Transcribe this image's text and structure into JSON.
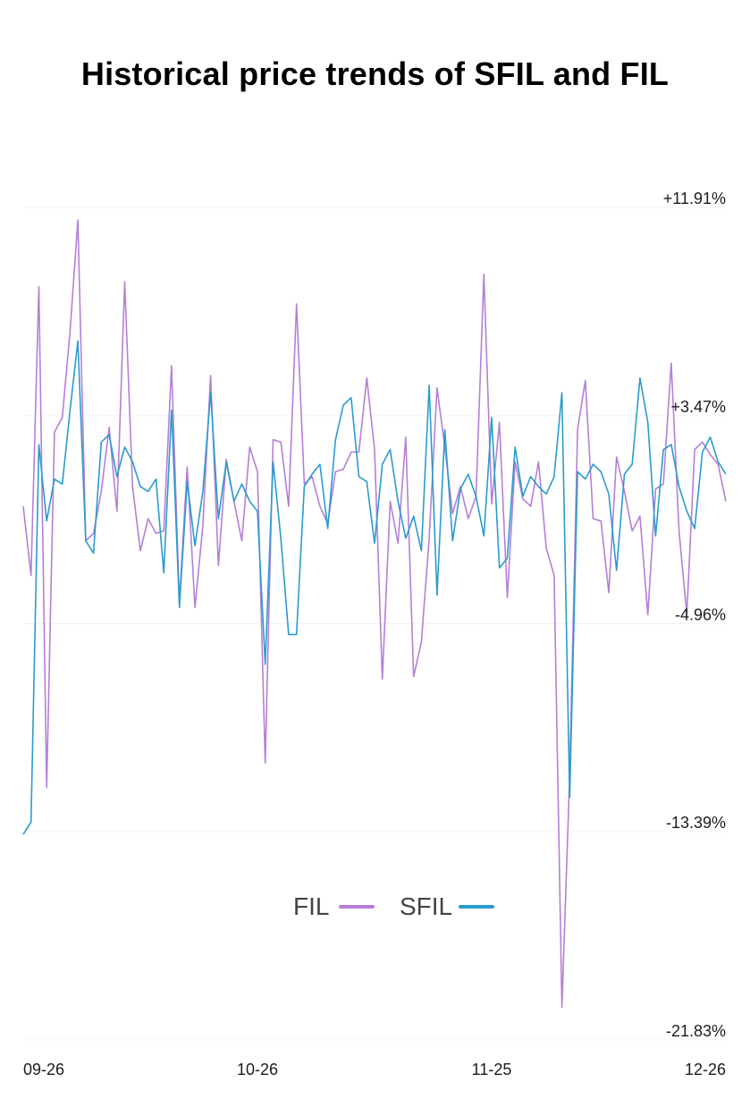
{
  "chart_data": {
    "type": "line",
    "title": "Historical price trends of SFIL and FIL",
    "xlabel": "",
    "ylabel": "",
    "x_ticks": [
      "09-26",
      "10-26",
      "11-25",
      "12-26"
    ],
    "x_tick_index": [
      2,
      30,
      60,
      91
    ],
    "y_ticks": [
      "+11.91%",
      "+3.47%",
      "-4.96%",
      "-13.39%",
      "-21.83%"
    ],
    "y_tick_values": [
      11.91,
      3.47,
      -4.96,
      -13.39,
      -21.83
    ],
    "ylim": [
      -21.83,
      11.91
    ],
    "grid": true,
    "legend": "bottom-center",
    "series": [
      {
        "name": "FIL",
        "color": "#b57fd6",
        "values": [
          -0.2,
          -3.0,
          8.7,
          -11.6,
          2.8,
          3.4,
          6.9,
          11.4,
          -1.6,
          -1.3,
          0.4,
          3.0,
          -0.4,
          8.9,
          0.6,
          -2.0,
          -0.7,
          -1.3,
          -1.2,
          5.5,
          -4.1,
          1.4,
          -4.3,
          -1.0,
          5.1,
          -2.6,
          1.7,
          0.0,
          -1.6,
          2.2,
          1.2,
          -10.6,
          2.5,
          2.4,
          -0.2,
          8.0,
          0.7,
          1.0,
          -0.2,
          -0.9,
          1.2,
          1.3,
          2.0,
          2.0,
          5.0,
          2.1,
          -7.2,
          0.0,
          -1.7,
          2.6,
          -7.1,
          -5.7,
          -1.5,
          4.6,
          2.2,
          -0.5,
          0.6,
          -0.7,
          0.2,
          9.2,
          -0.1,
          3.2,
          -3.9,
          1.6,
          0.1,
          -0.2,
          1.6,
          -1.9,
          -3.0,
          -20.5,
          -11.1,
          2.9,
          4.9,
          -0.7,
          -0.8,
          -3.7,
          1.8,
          0.4,
          -1.2,
          -0.6,
          -4.6,
          0.5,
          0.7,
          5.6,
          -1.2,
          -4.6,
          2.1,
          2.4,
          1.9,
          1.5,
          0.0
        ]
      },
      {
        "name": "SFIL",
        "color": "#2b9bcd",
        "values": [
          -13.5,
          -13.0,
          2.3,
          -0.8,
          0.9,
          0.7,
          3.7,
          6.5,
          -1.6,
          -2.1,
          2.4,
          2.7,
          1.0,
          2.2,
          1.6,
          0.6,
          0.4,
          0.9,
          -2.9,
          3.7,
          -4.3,
          0.8,
          -1.8,
          0.4,
          4.4,
          -0.7,
          1.6,
          0.0,
          0.7,
          0.0,
          -0.4,
          -6.6,
          1.6,
          -1.5,
          -5.4,
          -5.4,
          0.6,
          1.1,
          1.5,
          -1.1,
          2.5,
          3.9,
          4.2,
          1.0,
          0.8,
          -1.7,
          1.5,
          2.1,
          0.0,
          -1.5,
          -0.6,
          -2.0,
          4.7,
          -3.8,
          2.9,
          -1.6,
          0.5,
          1.1,
          0.2,
          -1.4,
          3.4,
          -2.7,
          -2.3,
          2.2,
          0.2,
          1.0,
          0.6,
          0.3,
          1.0,
          4.4,
          -12.0,
          1.2,
          0.9,
          1.5,
          1.2,
          0.3,
          -2.8,
          1.1,
          1.5,
          5.0,
          3.2,
          -1.4,
          2.1,
          2.3,
          0.6,
          -0.4,
          -1.1,
          2.0,
          2.6,
          1.6,
          1.1
        ]
      }
    ]
  }
}
